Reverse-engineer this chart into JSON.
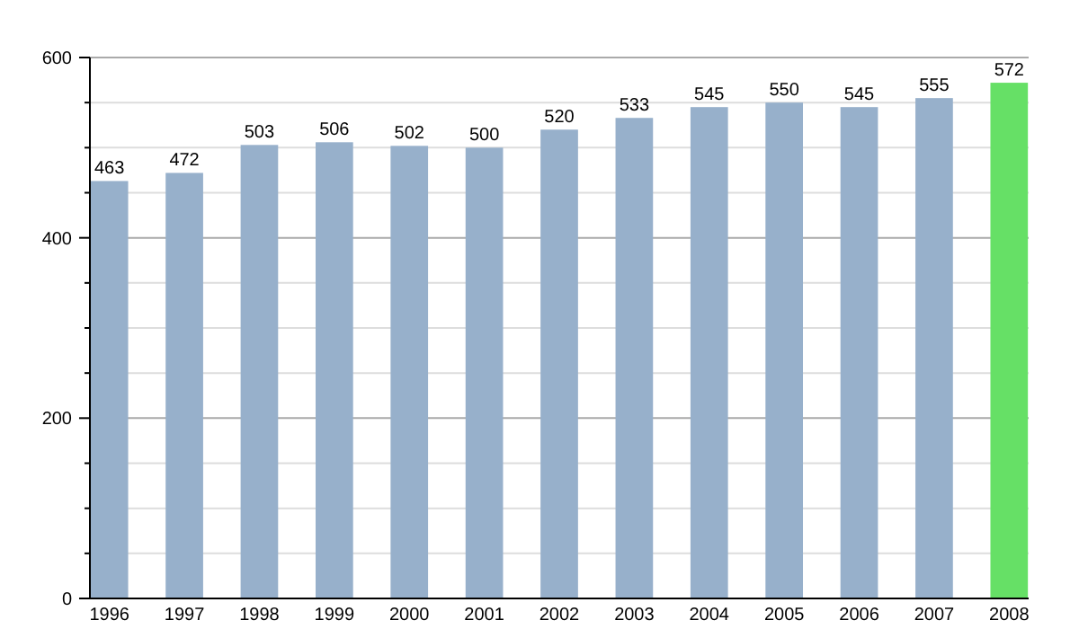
{
  "chart_data": {
    "type": "bar",
    "categories": [
      "1996",
      "1997",
      "1998",
      "1999",
      "2000",
      "2001",
      "2002",
      "2003",
      "2004",
      "2005",
      "2006",
      "2007",
      "2008"
    ],
    "values": [
      463,
      472,
      503,
      506,
      502,
      500,
      520,
      533,
      545,
      550,
      545,
      555,
      572
    ],
    "colors": [
      "#97b0cb",
      "#97b0cb",
      "#97b0cb",
      "#97b0cb",
      "#97b0cb",
      "#97b0cb",
      "#97b0cb",
      "#97b0cb",
      "#97b0cb",
      "#97b0cb",
      "#97b0cb",
      "#97b0cb",
      "#66e066"
    ],
    "ylim": [
      0,
      600
    ],
    "yticks": [
      0,
      {
        "value": 50,
        "label": null
      },
      {
        "value": 100,
        "label": null
      },
      {
        "value": 150,
        "label": null
      },
      200,
      {
        "value": 250,
        "label": null
      },
      {
        "value": 300,
        "label": null
      },
      {
        "value": 350,
        "label": null
      },
      400,
      {
        "value": 450,
        "label": null
      },
      {
        "value": 500,
        "label": null
      },
      {
        "value": 550,
        "label": null
      },
      600
    ],
    "grid": true,
    "data_labels": true
  }
}
